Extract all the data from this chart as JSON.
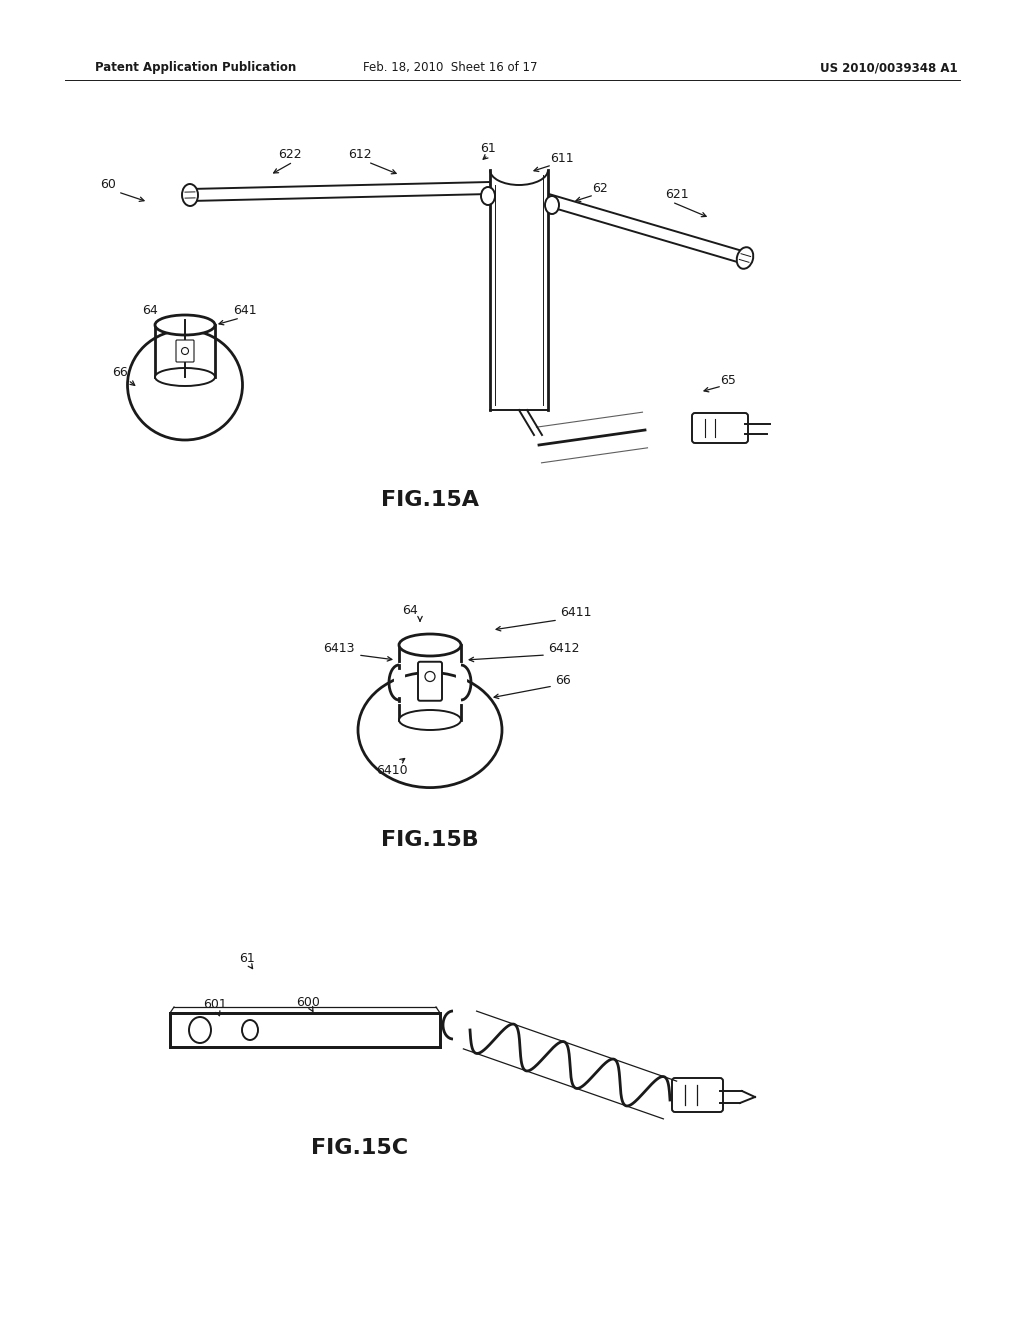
{
  "background_color": "#ffffff",
  "line_color": "#1a1a1a",
  "header_left": "Patent Application Publication",
  "header_mid": "Feb. 18, 2010  Sheet 16 of 17",
  "header_right": "US 2010/0039348 A1",
  "fig15a_label": "FIG.15A",
  "fig15b_label": "FIG.15B",
  "fig15c_label": "FIG.15C"
}
